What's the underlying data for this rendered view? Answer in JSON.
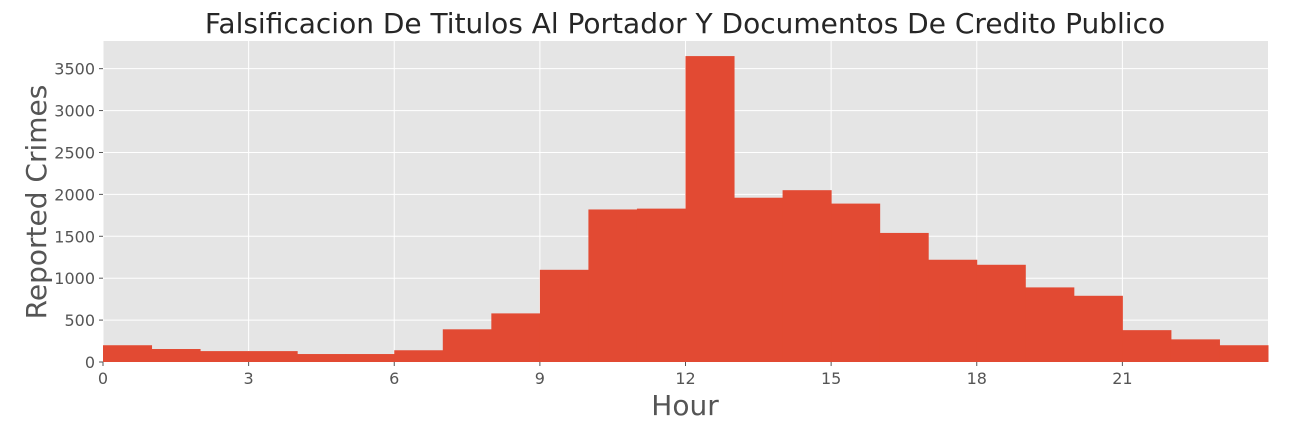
{
  "chart_data": {
    "type": "bar",
    "title": "Falsificacion De Titulos Al Portador Y Documentos De Credito Publico",
    "xlabel": "Hour",
    "ylabel": "Reported Crimes",
    "x_bin_start": [
      0,
      1,
      2,
      3,
      4,
      5,
      6,
      7,
      8,
      9,
      10,
      11,
      12,
      13,
      14,
      15,
      16,
      17,
      18,
      19,
      20,
      21,
      22,
      23
    ],
    "values": [
      200,
      155,
      130,
      130,
      95,
      95,
      140,
      390,
      580,
      1100,
      1820,
      1830,
      3650,
      1960,
      2050,
      1890,
      1540,
      1220,
      1160,
      890,
      790,
      380,
      270,
      200
    ],
    "xlim": [
      0,
      24
    ],
    "ylim": [
      0,
      3830
    ],
    "x_ticks": [
      0,
      3,
      6,
      9,
      12,
      15,
      18,
      21
    ],
    "y_ticks": [
      0,
      500,
      1000,
      1500,
      2000,
      2500,
      3000,
      3500
    ],
    "grid": true,
    "bar_color": "#E24A33",
    "background_color": "#E5E5E5",
    "grid_color": "#FFFFFF"
  }
}
